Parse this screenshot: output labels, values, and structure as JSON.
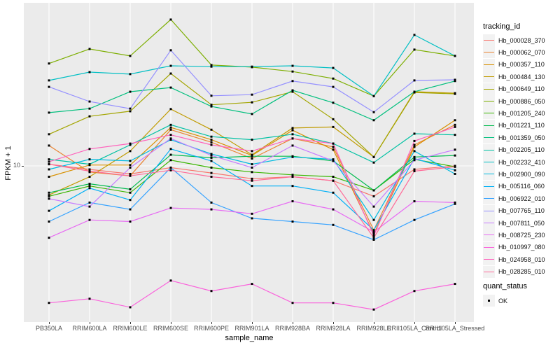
{
  "chart_data": {
    "type": "line",
    "title": "",
    "xlabel": "sample_name",
    "ylabel": "FPKM + 1",
    "y_scale": "log10",
    "y_ticks": [
      "10"
    ],
    "ylim_log10": [
      0.2,
      1.85
    ],
    "grid": "major-white-on-gray",
    "legend_position": "right",
    "panel_bg": "#EBEBEB",
    "grid_color": "#FFFFFF",
    "marker": "black-square",
    "marker_color": "#000000",
    "categories": [
      "PB350LA",
      "RRIM600LA",
      "RRIM600LE",
      "RRIM600SE",
      "RRIM600PE",
      "RRIM901LA",
      "RRIM928BA",
      "RRIM928LA",
      "RRIM928LE",
      "RRII105LA_Control",
      "RRII105LA_Stressed"
    ],
    "series": [
      {
        "name": "Hb_000028_370",
        "color": "#F8766D",
        "values": [
          10.2,
          9.6,
          9.1,
          9.8,
          9.2,
          8.6,
          8.8,
          8.4,
          7.0,
          9.6,
          10.0
        ]
      },
      {
        "name": "Hb_000062_070",
        "color": "#EA8331",
        "values": [
          12.7,
          9.3,
          8.9,
          15.3,
          13.2,
          10.9,
          13.8,
          12.5,
          4.7,
          12.8,
          16.2
        ]
      },
      {
        "name": "Hb_000357_110",
        "color": "#D89000",
        "values": [
          8.8,
          10.1,
          10.1,
          15.7,
          13.6,
          11.3,
          15.2,
          12.1,
          4.5,
          12.5,
          17.1
        ]
      },
      {
        "name": "Hb_000484_130",
        "color": "#C09B00",
        "values": [
          7.1,
          8.8,
          11.9,
          19.5,
          15.3,
          11.4,
          15.6,
          15.8,
          11.1,
          23.9,
          23.5
        ]
      },
      {
        "name": "Hb_000649_110",
        "color": "#A3A500",
        "values": [
          14.5,
          17.9,
          19.0,
          29.6,
          20.5,
          21.1,
          23.9,
          17.3,
          11.1,
          23.7,
          23.3
        ]
      },
      {
        "name": "Hb_000886_050",
        "color": "#7CAE00",
        "values": [
          33.3,
          39.5,
          36.4,
          55.8,
          32.7,
          31.9,
          30.3,
          27.9,
          22.7,
          39.2,
          36.4
        ]
      },
      {
        "name": "Hb_001205_240",
        "color": "#39B600",
        "values": [
          7.0,
          7.9,
          7.3,
          10.7,
          9.8,
          9.3,
          9.0,
          8.8,
          7.5,
          10.8,
          9.9
        ]
      },
      {
        "name": "Hb_001221_110",
        "color": "#00BB4E",
        "values": [
          7.3,
          8.1,
          7.6,
          11.4,
          11.0,
          11.2,
          11.2,
          10.6,
          7.5,
          11.1,
          11.3
        ]
      },
      {
        "name": "Hb_001359_050",
        "color": "#00BF7D",
        "values": [
          18.7,
          19.6,
          23.9,
          25.1,
          20.1,
          18.4,
          24.3,
          21.0,
          17.1,
          23.9,
          27.1
        ]
      },
      {
        "name": "Hb_002205_110",
        "color": "#00C1A3",
        "values": [
          10.8,
          10.2,
          12.8,
          16.2,
          14.1,
          13.6,
          14.5,
          13.0,
          10.4,
          14.6,
          14.4
        ]
      },
      {
        "name": "Hb_002232_410",
        "color": "#00BFC4",
        "values": [
          27.3,
          30.1,
          29.4,
          32.4,
          32.1,
          32.1,
          32.4,
          31.6,
          22.7,
          46.6,
          36.4
        ]
      },
      {
        "name": "Hb_002900_090",
        "color": "#00BAE0",
        "values": [
          9.6,
          10.8,
          10.6,
          13.6,
          11.5,
          10.2,
          11.1,
          10.8,
          5.3,
          11.9,
          9.1
        ]
      },
      {
        "name": "Hb_005116_060",
        "color": "#00B0F6",
        "values": [
          5.9,
          7.7,
          6.7,
          12.2,
          10.6,
          7.9,
          7.9,
          7.3,
          4.7,
          10.9,
          9.5
        ]
      },
      {
        "name": "Hb_006922_010",
        "color": "#35A2FF",
        "values": [
          5.2,
          6.5,
          6.0,
          9.8,
          6.5,
          5.4,
          5.2,
          5.0,
          4.2,
          5.3,
          6.4
        ]
      },
      {
        "name": "Hb_007765_110",
        "color": "#9590FF",
        "values": [
          25.3,
          21.3,
          19.6,
          38.9,
          22.8,
          23.1,
          27.1,
          25.3,
          18.8,
          27.3,
          27.5
        ]
      },
      {
        "name": "Hb_007811_050",
        "color": "#C77CFF",
        "values": [
          6.8,
          6.2,
          9.8,
          13.8,
          11.3,
          9.8,
          12.7,
          10.6,
          6.2,
          10.7,
          12.1
        ]
      },
      {
        "name": "Hb_008725_230",
        "color": "#E76BF3",
        "values": [
          4.3,
          5.3,
          5.2,
          6.1,
          6.0,
          5.7,
          6.6,
          6.0,
          4.6,
          6.6,
          6.5
        ]
      },
      {
        "name": "Hb_010997_080",
        "color": "#FA62DB",
        "values": [
          2.0,
          2.1,
          1.9,
          2.6,
          2.3,
          2.5,
          2.0,
          2.0,
          1.85,
          2.3,
          2.5
        ]
      },
      {
        "name": "Hb_024958_010",
        "color": "#FF62BC",
        "values": [
          10.5,
          12.2,
          13.0,
          14.4,
          12.8,
          11.9,
          13.8,
          13.0,
          4.4,
          13.4,
          15.8
        ]
      },
      {
        "name": "Hb_028285_010",
        "color": "#FF6A98",
        "values": [
          10.2,
          9.4,
          8.9,
          9.5,
          8.8,
          8.4,
          8.8,
          8.4,
          4.3,
          9.4,
          9.9
        ]
      }
    ],
    "legend": {
      "tracking_title": "tracking_id",
      "quant_title": "quant_status",
      "quant_items": [
        {
          "label": "OK",
          "marker": "black-square"
        }
      ]
    }
  }
}
